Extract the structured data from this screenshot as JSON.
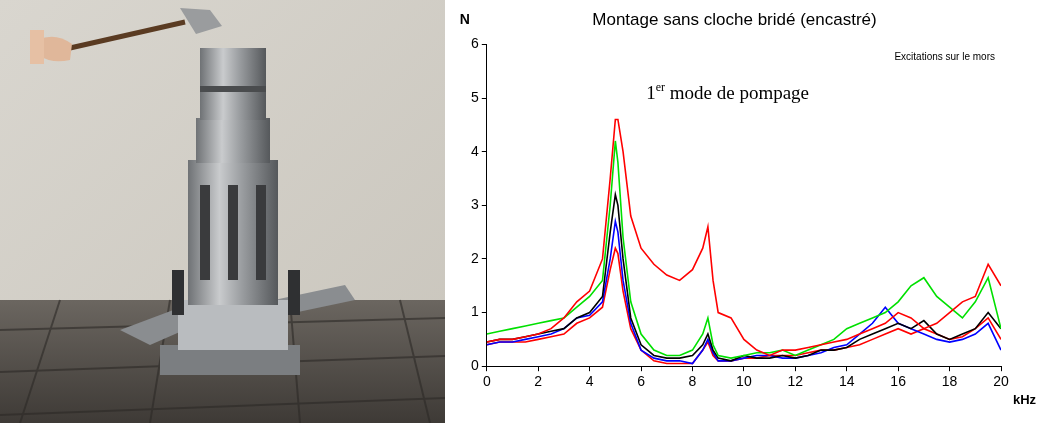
{
  "chart_data": {
    "type": "line",
    "title": "Montage sans cloche bridé (encastré)",
    "xlabel": "kHz",
    "ylabel": "N",
    "annotations": [
      "1er mode de pompage",
      "Excitations sur le mors"
    ],
    "x": [
      0,
      0.5,
      1,
      1.5,
      2,
      2.5,
      3,
      3.5,
      4,
      4.5,
      4.8,
      5.0,
      5.1,
      5.3,
      5.6,
      6,
      6.5,
      7,
      7.5,
      8,
      8.4,
      8.6,
      8.8,
      9,
      9.5,
      10,
      10.5,
      11,
      11.5,
      12,
      12.5,
      13,
      13.5,
      14,
      14.5,
      15,
      15.5,
      16,
      16.5,
      17,
      17.5,
      18,
      18.5,
      19,
      19.5,
      20
    ],
    "series": [
      {
        "color": "#ff0000",
        "values": [
          0.45,
          0.5,
          0.5,
          0.55,
          0.6,
          0.7,
          0.9,
          1.2,
          1.4,
          2.0,
          3.5,
          4.6,
          4.6,
          4.0,
          2.8,
          2.2,
          1.9,
          1.7,
          1.6,
          1.8,
          2.2,
          2.6,
          1.6,
          1.0,
          0.9,
          0.5,
          0.3,
          0.2,
          0.3,
          0.3,
          0.35,
          0.4,
          0.45,
          0.5,
          0.6,
          0.7,
          0.8,
          1.0,
          0.9,
          0.7,
          0.8,
          1.0,
          1.2,
          1.3,
          1.9,
          1.5
        ]
      },
      {
        "color": "#00e000",
        "values": [
          0.6,
          0.65,
          0.7,
          0.75,
          0.8,
          0.85,
          0.9,
          1.1,
          1.3,
          1.6,
          3.0,
          4.2,
          3.8,
          2.4,
          1.2,
          0.6,
          0.3,
          0.2,
          0.2,
          0.3,
          0.6,
          0.9,
          0.4,
          0.2,
          0.15,
          0.2,
          0.25,
          0.25,
          0.3,
          0.2,
          0.3,
          0.4,
          0.5,
          0.7,
          0.8,
          0.9,
          1.0,
          1.2,
          1.5,
          1.65,
          1.3,
          1.1,
          0.9,
          1.2,
          1.65,
          0.7
        ]
      },
      {
        "color": "#000000",
        "values": [
          0.45,
          0.5,
          0.5,
          0.55,
          0.6,
          0.65,
          0.7,
          0.9,
          1.0,
          1.3,
          2.5,
          3.2,
          3.0,
          2.0,
          0.9,
          0.4,
          0.2,
          0.15,
          0.15,
          0.2,
          0.4,
          0.6,
          0.3,
          0.15,
          0.1,
          0.2,
          0.15,
          0.15,
          0.2,
          0.15,
          0.2,
          0.3,
          0.3,
          0.35,
          0.5,
          0.6,
          0.7,
          0.8,
          0.7,
          0.85,
          0.6,
          0.5,
          0.6,
          0.7,
          1.0,
          0.7
        ]
      },
      {
        "color": "#0000ff",
        "values": [
          0.4,
          0.45,
          0.45,
          0.5,
          0.55,
          0.6,
          0.7,
          0.9,
          0.95,
          1.2,
          2.0,
          2.7,
          2.5,
          1.6,
          0.8,
          0.3,
          0.15,
          0.1,
          0.1,
          0.05,
          0.3,
          0.5,
          0.25,
          0.1,
          0.1,
          0.15,
          0.2,
          0.2,
          0.15,
          0.15,
          0.2,
          0.25,
          0.35,
          0.4,
          0.6,
          0.8,
          1.1,
          0.8,
          0.7,
          0.6,
          0.5,
          0.45,
          0.5,
          0.6,
          0.8,
          0.3
        ]
      },
      {
        "color": "#ff0000",
        "values": [
          0.4,
          0.45,
          0.45,
          0.45,
          0.5,
          0.55,
          0.6,
          0.8,
          0.9,
          1.1,
          1.8,
          2.2,
          2.1,
          1.4,
          0.7,
          0.3,
          0.1,
          0.05,
          0.05,
          0.05,
          0.3,
          0.45,
          0.2,
          0.1,
          0.1,
          0.15,
          0.15,
          0.2,
          0.2,
          0.2,
          0.25,
          0.3,
          0.3,
          0.35,
          0.4,
          0.5,
          0.6,
          0.7,
          0.6,
          0.7,
          0.6,
          0.5,
          0.55,
          0.7,
          0.9,
          0.5
        ]
      }
    ],
    "xlim": [
      0,
      20
    ],
    "xticks": [
      0,
      2,
      4,
      6,
      8,
      10,
      12,
      14,
      16,
      18,
      20
    ],
    "ylim": [
      0,
      6
    ],
    "yticks": [
      0,
      1,
      2,
      3,
      4,
      5,
      6
    ],
    "grid": false
  }
}
